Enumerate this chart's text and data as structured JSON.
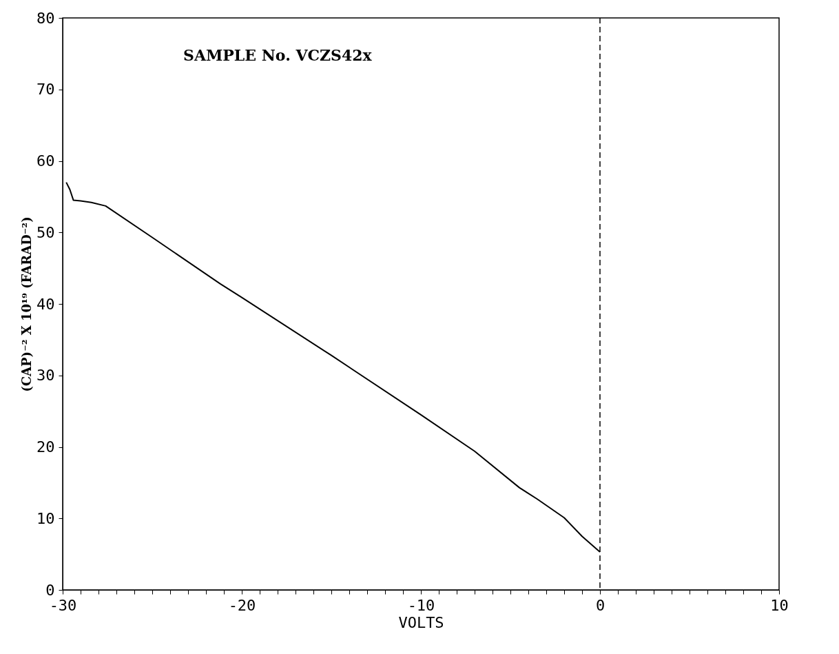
{
  "chart_data": {
    "type": "line",
    "xlabel": "VOLTS",
    "ylabel": "(CAP)⁻² X 10¹⁹ (FARAD⁻²)",
    "annotations": [
      "SAMPLE No. VCZS42x"
    ],
    "x": [
      -29.8,
      -29.6,
      -29.4,
      -29.0,
      -28.4,
      -27.6,
      -25.0,
      -21.2,
      -20.0,
      -15.0,
      -10.0,
      -7.0,
      -4.5,
      -3.5,
      -2.0,
      -1.0,
      0.0
    ],
    "series": [
      {
        "color": "#000000",
        "values": [
          57.0,
          56.0,
          54.5,
          54.4,
          54.2,
          53.7,
          49.3,
          42.8,
          40.9,
          32.8,
          24.5,
          19.4,
          14.3,
          12.7,
          10.1,
          7.5,
          5.3
        ]
      }
    ],
    "xlim": [
      -30,
      10
    ],
    "ylim": [
      0,
      80
    ],
    "xticks": [
      -30,
      {
        "value": -29,
        "label": null
      },
      {
        "value": -28,
        "label": null
      },
      {
        "value": -27,
        "label": null
      },
      {
        "value": -26,
        "label": null
      },
      {
        "value": -25,
        "label": null
      },
      {
        "value": -24,
        "label": null
      },
      {
        "value": -23,
        "label": null
      },
      {
        "value": -22,
        "label": null
      },
      {
        "value": -21,
        "label": null
      },
      -20,
      {
        "value": -19,
        "label": null
      },
      {
        "value": -18,
        "label": null
      },
      {
        "value": -17,
        "label": null
      },
      {
        "value": -16,
        "label": null
      },
      {
        "value": -15,
        "label": null
      },
      {
        "value": -14,
        "label": null
      },
      {
        "value": -13,
        "label": null
      },
      {
        "value": -12,
        "label": null
      },
      {
        "value": -11,
        "label": null
      },
      -10,
      {
        "value": -9,
        "label": null
      },
      {
        "value": -8,
        "label": null
      },
      {
        "value": -7,
        "label": null
      },
      {
        "value": -6,
        "label": null
      },
      {
        "value": -5,
        "label": null
      },
      {
        "value": -4,
        "label": null
      },
      {
        "value": -3,
        "label": null
      },
      {
        "value": -2,
        "label": null
      },
      {
        "value": -1,
        "label": null
      },
      0,
      {
        "value": 1,
        "label": null
      },
      {
        "value": 2,
        "label": null
      },
      {
        "value": 3,
        "label": null
      },
      {
        "value": 4,
        "label": null
      },
      {
        "value": 5,
        "label": null
      },
      {
        "value": 6,
        "label": null
      },
      {
        "value": 7,
        "label": null
      },
      {
        "value": 8,
        "label": null
      },
      {
        "value": 9,
        "label": null
      },
      10
    ],
    "yticks": [
      0,
      10,
      20,
      30,
      40,
      50,
      60,
      70,
      80
    ],
    "ref_lines": [
      {
        "axis": "x",
        "value": 0,
        "line_style": "dashed",
        "color": "#000000"
      }
    ],
    "grid": false,
    "marker": "none",
    "line_style": "solid"
  }
}
